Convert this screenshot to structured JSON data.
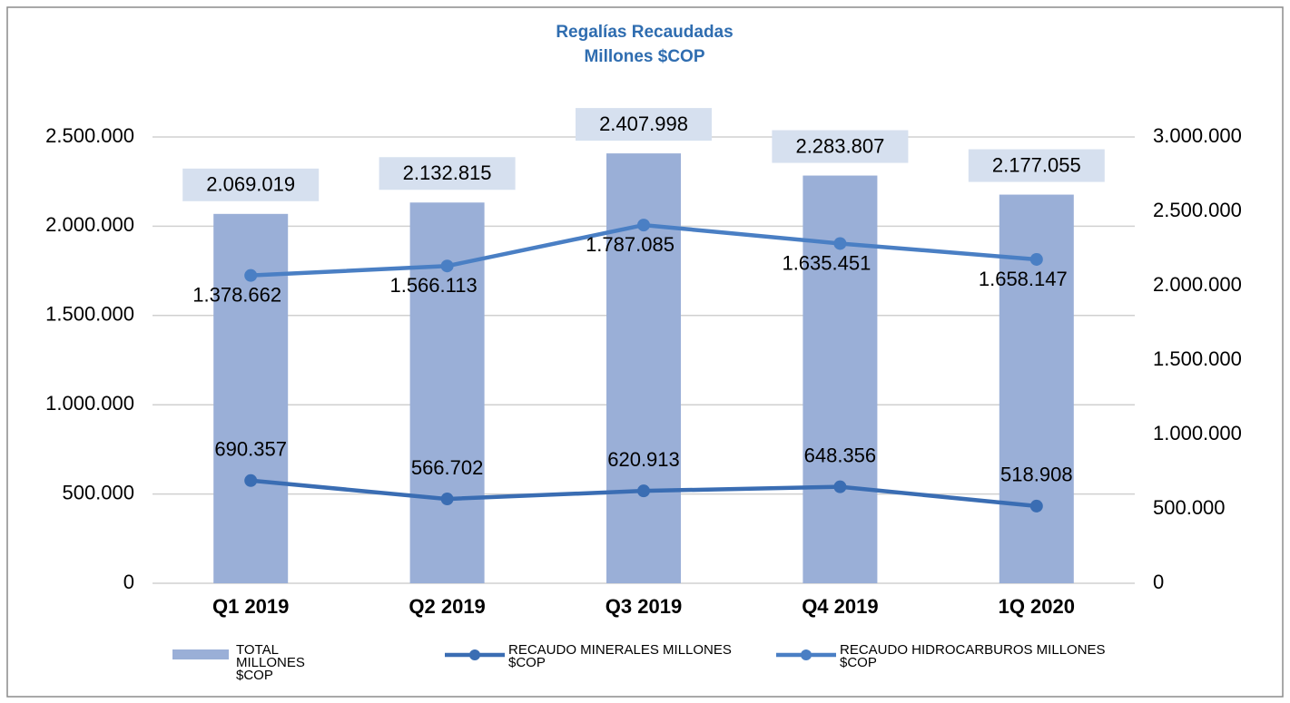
{
  "chart_data": {
    "type": "bar",
    "title": "Regalías Recaudadas",
    "subtitle": "Millones $COP",
    "categories": [
      "Q1 2019",
      "Q2 2019",
      "Q3 2019",
      "Q4 2019",
      "1Q 2020"
    ],
    "stacked_lines": true,
    "series": [
      {
        "name": "TOTAL MILLONES $COP",
        "type": "bar",
        "axis": "y",
        "color": "#9aafd7",
        "values": [
          2069019,
          2132815,
          2407998,
          2283807,
          2177055
        ],
        "value_labels": [
          "2.069.019",
          "2.132.815",
          "2.407.998",
          "2.283.807",
          "2.177.055"
        ]
      },
      {
        "name": "RECAUDO MINERALES MILLONES $COP",
        "type": "line",
        "axis": "y2",
        "color": "#3a6db3",
        "values": [
          690357,
          566702,
          620913,
          648356,
          518908
        ],
        "value_labels": [
          "690.357",
          "566.702",
          "620.913",
          "648.356",
          "518.908"
        ]
      },
      {
        "name": "RECAUDO HIDROCARBUROS MILLONES $COP",
        "type": "line",
        "axis": "y2",
        "color": "#4a7fc4",
        "values": [
          1378662,
          1566113,
          1787085,
          1635451,
          1658147
        ],
        "value_labels": [
          "1.378.662",
          "1.566.113",
          "1.787.085",
          "1.635.451",
          "1.658.147"
        ]
      }
    ],
    "ylim": [
      0,
      2500000
    ],
    "yticks": [
      0,
      {
        "value": 500000,
        "label": "500.000"
      },
      {
        "value": 1000000,
        "label": "1.000.000"
      },
      {
        "value": 1500000,
        "label": "1.500.000"
      },
      {
        "value": 2000000,
        "label": "2.000.000"
      },
      {
        "value": 2500000,
        "label": "2.500.000"
      }
    ],
    "y2lim": [
      0,
      3000000
    ],
    "y2ticks": [
      0,
      {
        "value": 500000,
        "label": "500.000"
      },
      {
        "value": 1000000,
        "label": "1.000.000"
      },
      {
        "value": 1500000,
        "label": "1.500.000"
      },
      {
        "value": 2000000,
        "label": "2.000.000"
      },
      {
        "value": 2500000,
        "label": "2.500.000"
      },
      {
        "value": 3000000,
        "label": "3.000.000"
      }
    ],
    "grid": true,
    "legend": "bottom"
  }
}
